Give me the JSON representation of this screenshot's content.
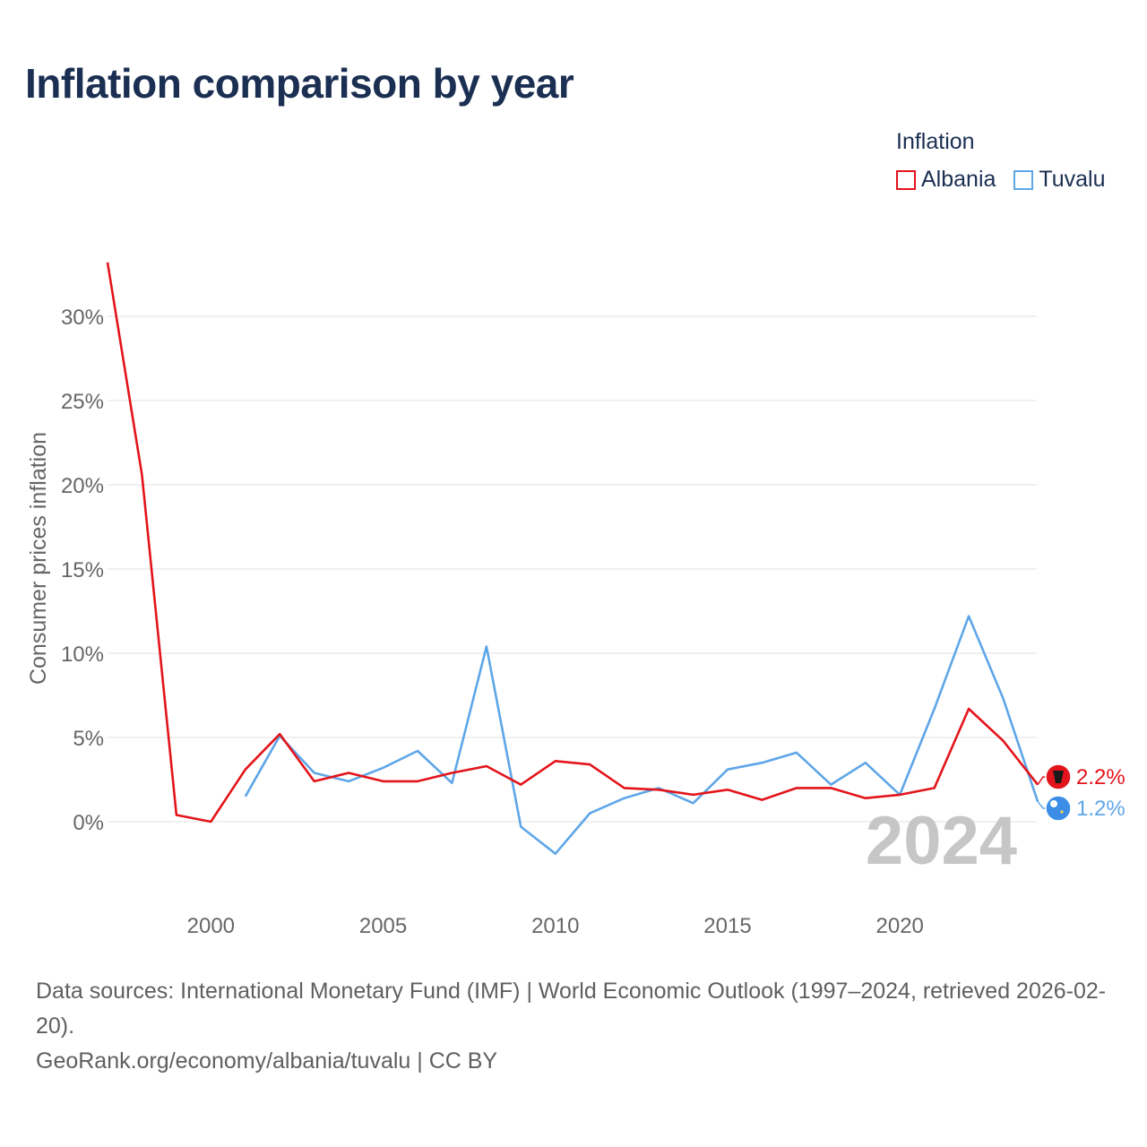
{
  "title": "Inflation comparison by year",
  "legend": {
    "title": "Inflation",
    "items": [
      {
        "label": "Albania",
        "color": "#e3141b"
      },
      {
        "label": "Tuvalu",
        "color": "#5ea6e8"
      }
    ]
  },
  "footer": {
    "sources": "Data sources: International Monetary Fund (IMF) | World Economic Outlook (1997–2024, retrieved 2026-02-20).",
    "credit": "GeoRank.org/economy/albania/tuvalu | CC BY"
  },
  "chart_data": {
    "type": "line",
    "title": "Inflation comparison by year",
    "xlabel": "",
    "ylabel": "Consumer prices inflation",
    "xlim": [
      1997,
      2024
    ],
    "ylim": [
      -4,
      34
    ],
    "yticks": [
      0,
      5,
      10,
      15,
      20,
      25,
      30
    ],
    "ytick_labels": [
      "0%",
      "5%",
      "10%",
      "15%",
      "20%",
      "25%",
      "30%"
    ],
    "xticks": [
      2000,
      2005,
      2010,
      2015,
      2020
    ],
    "xtick_labels": [
      "2000",
      "2005",
      "2010",
      "2015",
      "2020"
    ],
    "grid": true,
    "legend_position": "top-right",
    "year_watermark": "2024",
    "series": [
      {
        "name": "Albania",
        "color": "#e3141b",
        "end_label": "2.2%",
        "points": [
          [
            1997,
            33.2
          ],
          [
            1998,
            20.6
          ],
          [
            1999,
            0.4
          ],
          [
            2000,
            0.0
          ],
          [
            2001,
            3.1
          ],
          [
            2002,
            5.2
          ],
          [
            2003,
            2.4
          ],
          [
            2004,
            2.9
          ],
          [
            2005,
            2.4
          ],
          [
            2006,
            2.4
          ],
          [
            2007,
            2.9
          ],
          [
            2008,
            3.3
          ],
          [
            2009,
            2.2
          ],
          [
            2010,
            3.6
          ],
          [
            2011,
            3.4
          ],
          [
            2012,
            2.0
          ],
          [
            2013,
            1.9
          ],
          [
            2014,
            1.6
          ],
          [
            2015,
            1.9
          ],
          [
            2016,
            1.3
          ],
          [
            2017,
            2.0
          ],
          [
            2018,
            2.0
          ],
          [
            2019,
            1.4
          ],
          [
            2020,
            1.6
          ],
          [
            2021,
            2.0
          ],
          [
            2022,
            6.7
          ],
          [
            2023,
            4.8
          ],
          [
            2024,
            2.2
          ]
        ]
      },
      {
        "name": "Tuvalu",
        "color": "#5ea6e8",
        "end_label": "1.2%",
        "points": [
          [
            2001,
            1.5
          ],
          [
            2002,
            5.1
          ],
          [
            2003,
            2.9
          ],
          [
            2004,
            2.4
          ],
          [
            2005,
            3.2
          ],
          [
            2006,
            4.2
          ],
          [
            2007,
            2.3
          ],
          [
            2008,
            10.4
          ],
          [
            2009,
            -0.3
          ],
          [
            2010,
            -1.9
          ],
          [
            2011,
            0.5
          ],
          [
            2012,
            1.4
          ],
          [
            2013,
            2.0
          ],
          [
            2014,
            1.1
          ],
          [
            2015,
            3.1
          ],
          [
            2016,
            3.5
          ],
          [
            2017,
            4.1
          ],
          [
            2018,
            2.2
          ],
          [
            2019,
            3.5
          ],
          [
            2020,
            1.6
          ],
          [
            2021,
            6.7
          ],
          [
            2022,
            12.2
          ],
          [
            2023,
            7.3
          ],
          [
            2024,
            1.2
          ]
        ]
      }
    ]
  }
}
